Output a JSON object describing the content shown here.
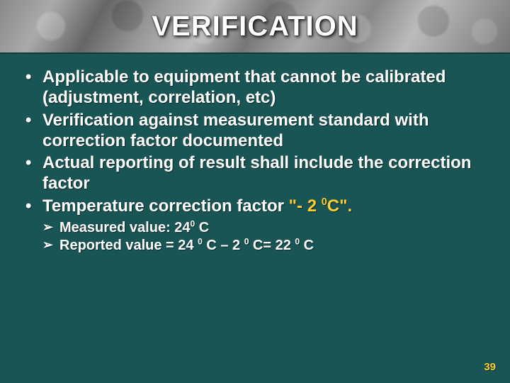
{
  "colors": {
    "background": "#1a5555",
    "text": "#ffffff",
    "accent": "#ffcc33",
    "title_band_base": "#7a7a7a",
    "title_band_border": "#0f3a3a"
  },
  "typography": {
    "family": "Verdana",
    "title_size_pt": 30,
    "bullet_size_pt": 18,
    "subbullet_size_pt": 15,
    "pagenum_size_pt": 11,
    "weight": "bold"
  },
  "title": "VERIFICATION",
  "bullets": [
    {
      "text": "Applicable to equipment that cannot be calibrated (adjustment, correlation, etc)"
    },
    {
      "text": "Verification against measurement standard with correction factor documented"
    },
    {
      "text": "Actual reporting of result shall include the correction factor"
    },
    {
      "prefix": "Temperature correction factor ",
      "accent": "\"- 2 ",
      "accent_sup": "0",
      "accent_suffix": "C\"."
    }
  ],
  "subbullets": [
    {
      "prefix": "Measured value: 24",
      "sup": "0",
      "suffix": " C"
    },
    {
      "prefix": "Reported value = 24 ",
      "sup1": "0",
      "mid": " C  – 2 ",
      "sup2": "0",
      "mid2": " C= 22 ",
      "sup3": "0",
      "suffix": " C"
    }
  ],
  "page_number": "39"
}
